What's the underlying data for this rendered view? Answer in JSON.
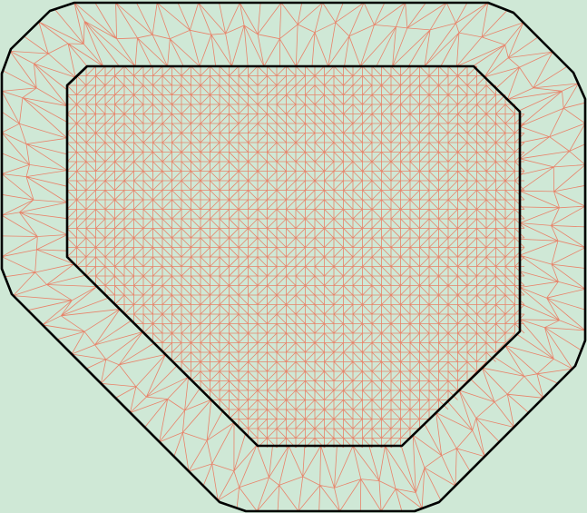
{
  "colors": {
    "background": "#cfe8d6",
    "mesh": "#e8836a",
    "boundary": "#000000"
  },
  "diagram": {
    "type": "triangular-mesh",
    "regions": [
      {
        "label": "",
        "description_shape": "octagonal outer boundary",
        "mesh_density": "coarse"
      },
      {
        "label": "",
        "description_shape": "hexagonal inner boundary",
        "mesh_density": "fine"
      }
    ]
  }
}
